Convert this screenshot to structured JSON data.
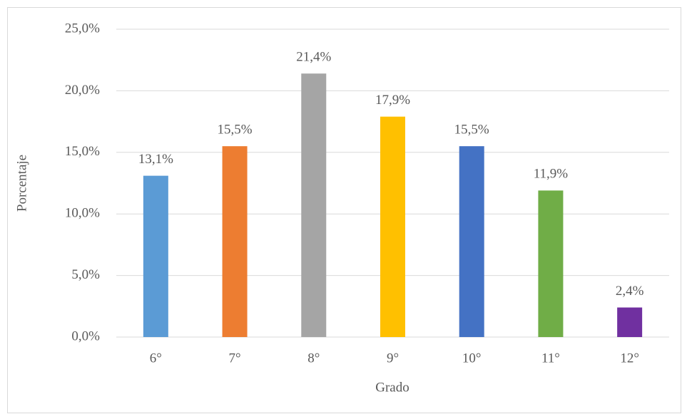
{
  "chart_data": {
    "type": "bar",
    "categories": [
      "6°",
      "7°",
      "8°",
      "9°",
      "10°",
      "11°",
      "12°"
    ],
    "values": [
      13.1,
      15.5,
      21.4,
      17.9,
      15.5,
      11.9,
      2.4
    ],
    "value_labels": [
      "13,1%",
      "15,5%",
      "21,4%",
      "17,9%",
      "15,5%",
      "11,9%",
      "2,4%"
    ],
    "colors": [
      "#5b9bd5",
      "#ed7d31",
      "#a5a5a5",
      "#ffc000",
      "#4472c4",
      "#70ad47",
      "#7030a0"
    ],
    "xlabel": "Grado",
    "ylabel": "Porcentaje",
    "ylim": [
      0,
      25
    ],
    "yticks": [
      {
        "value": 0,
        "label": "0,0%"
      },
      {
        "value": 5,
        "label": "5,0%"
      },
      {
        "value": 10,
        "label": "10,0%"
      },
      {
        "value": 15,
        "label": "15,0%"
      },
      {
        "value": 20,
        "label": "20,0%"
      },
      {
        "value": 25,
        "label": "25,0%"
      }
    ],
    "grid": true
  }
}
